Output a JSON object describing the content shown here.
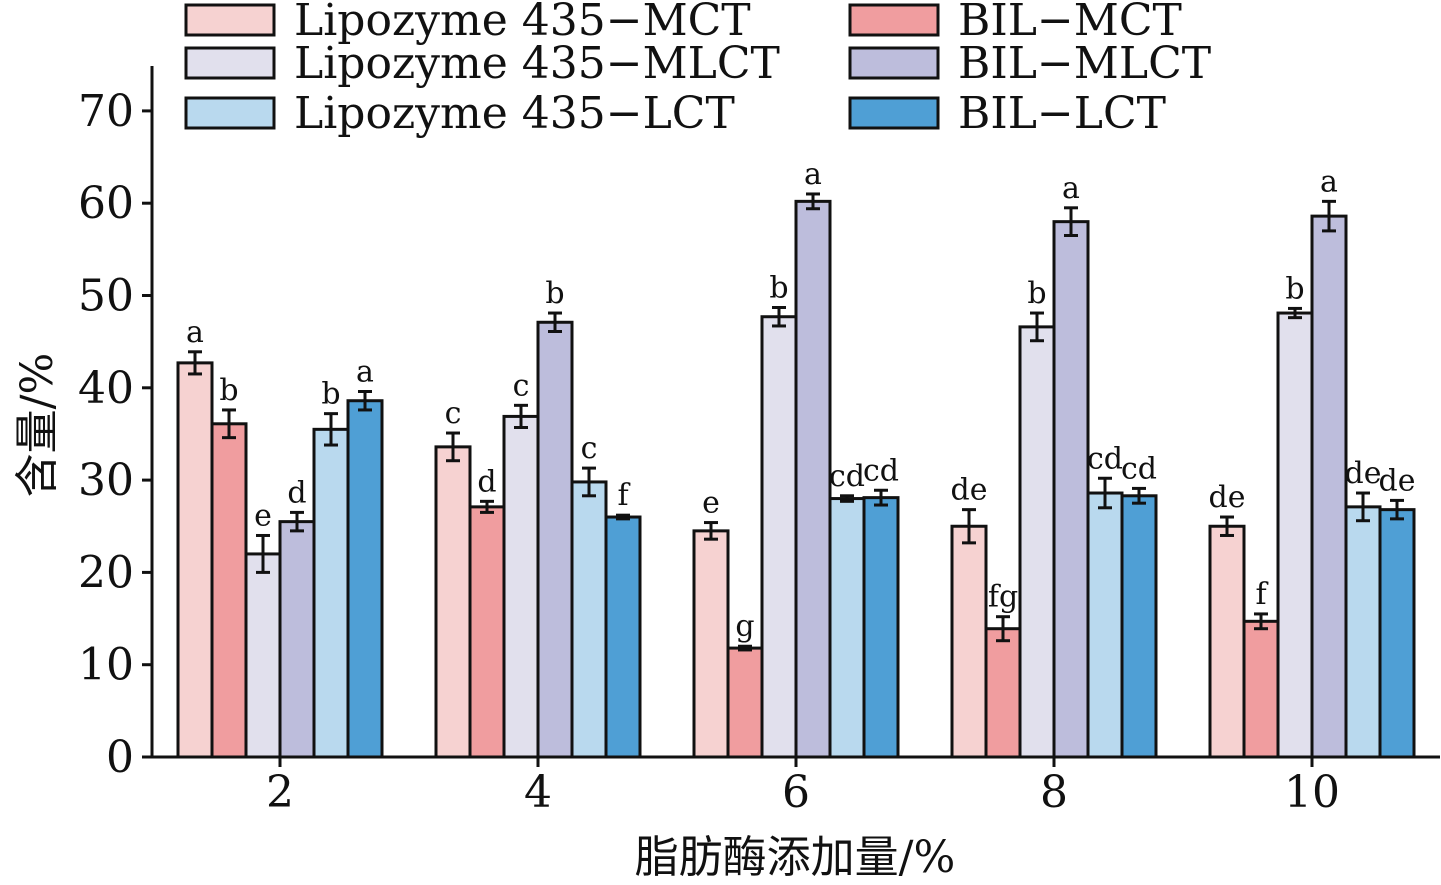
{
  "chart_data": {
    "type": "bar",
    "title": "",
    "xlabel": "脂肪酶添加量/%",
    "ylabel": "含量/%",
    "categories": [
      "2",
      "4",
      "6",
      "8",
      "10"
    ],
    "ylim": [
      0,
      75
    ],
    "yticks": [
      0,
      10,
      20,
      30,
      40,
      50,
      60,
      70
    ],
    "ytick_labels": [
      "0",
      "10",
      "20",
      "30",
      "40",
      "50",
      "60",
      "70"
    ],
    "grid": false,
    "legend_position": "top",
    "series": [
      {
        "name": "Lipozyme 435−MCT",
        "color": "#f6d2d1",
        "values": [
          42.7,
          33.6,
          24.5,
          25.0,
          25.0
        ],
        "errors": [
          1.2,
          1.5,
          0.9,
          1.8,
          1.0
        ],
        "labels": [
          "a",
          "c",
          "e",
          "de",
          "de"
        ]
      },
      {
        "name": "BIL−MCT",
        "color": "#f09d9f",
        "values": [
          36.1,
          27.1,
          11.8,
          13.9,
          14.7
        ],
        "errors": [
          1.5,
          0.6,
          0.2,
          1.3,
          0.8
        ],
        "labels": [
          "b",
          "d",
          "g",
          "fg",
          "f"
        ]
      },
      {
        "name": "Lipozyme 435−MLCT",
        "color": "#e1e0ed",
        "values": [
          22.0,
          36.9,
          47.7,
          46.6,
          48.1
        ],
        "errors": [
          2.0,
          1.2,
          1.0,
          1.5,
          0.5
        ],
        "labels": [
          "e",
          "c",
          "b",
          "b",
          "b"
        ]
      },
      {
        "name": "BIL−MLCT",
        "color": "#bdbddc",
        "values": [
          25.5,
          47.1,
          60.2,
          58.0,
          58.6
        ],
        "errors": [
          1.0,
          1.0,
          0.8,
          1.5,
          1.6
        ],
        "labels": [
          "d",
          "b",
          "a",
          "a",
          "a"
        ]
      },
      {
        "name": "Lipozyme 435−LCT",
        "color": "#b9d9ee",
        "values": [
          35.5,
          29.8,
          28.0,
          28.6,
          27.1
        ],
        "errors": [
          1.7,
          1.5,
          0.3,
          1.6,
          1.5
        ],
        "labels": [
          "b",
          "c",
          "cd",
          "cd",
          "de"
        ]
      },
      {
        "name": "BIL−LCT",
        "color": "#4f9fd5",
        "values": [
          38.6,
          26.0,
          28.1,
          28.3,
          26.8
        ],
        "errors": [
          1.0,
          0.2,
          0.8,
          0.8,
          1.0
        ],
        "labels": [
          "a",
          "f",
          "cd",
          "cd",
          "de"
        ]
      }
    ]
  }
}
